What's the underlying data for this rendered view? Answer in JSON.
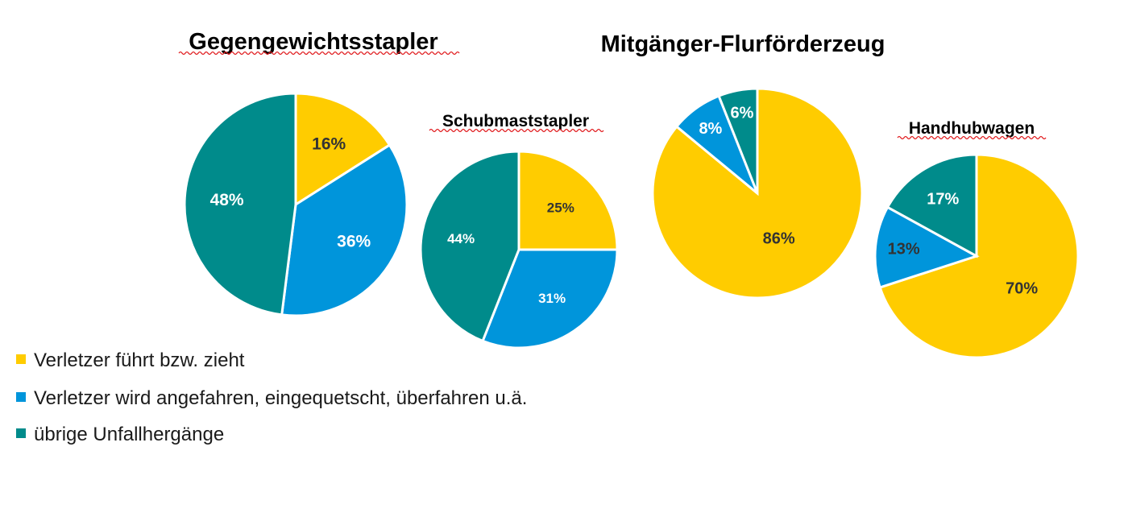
{
  "colors": {
    "fuehrt": "#FFCC00",
    "angefahren": "#0095DB",
    "uebrige": "#008B8B",
    "label_dark": "#333333",
    "label_light": "#ffffff"
  },
  "chart_data": [
    {
      "type": "pie",
      "title": "Gegengewichtsstapler",
      "slices": [
        {
          "label": "Verletzer führt bzw. zieht",
          "value": 16,
          "text": "16%"
        },
        {
          "label": "Verletzer wird angefahren, eingequetscht, überfahren u.ä.",
          "value": 36,
          "text": "36%"
        },
        {
          "label": "übrige Unfallhergänge",
          "value": 48,
          "text": "48%"
        }
      ]
    },
    {
      "type": "pie",
      "title": "Schubmaststapler",
      "slices": [
        {
          "label": "Verletzer führt bzw. zieht",
          "value": 25,
          "text": "25%"
        },
        {
          "label": "Verletzer wird angefahren, eingequetscht, überfahren u.ä.",
          "value": 31,
          "text": "31%"
        },
        {
          "label": "übrige Unfallhergänge",
          "value": 44,
          "text": "44%"
        }
      ]
    },
    {
      "type": "pie",
      "title": "Mitgänger-Flurförderzeug",
      "slices": [
        {
          "label": "Verletzer führt bzw. zieht",
          "value": 86,
          "text": "86%"
        },
        {
          "label": "Verletzer wird angefahren, eingequetscht, überfahren u.ä.",
          "value": 8,
          "text": "8%"
        },
        {
          "label": "übrige Unfallhergänge",
          "value": 6,
          "text": "6%"
        }
      ]
    },
    {
      "type": "pie",
      "title": "Handhubwagen",
      "slices": [
        {
          "label": "Verletzer führt bzw. zieht",
          "value": 70,
          "text": "70%"
        },
        {
          "label": "Verletzer wird angefahren, eingequetscht, überfahren u.ä.",
          "value": 13,
          "text": "13%"
        },
        {
          "label": "übrige Unfallhergänge",
          "value": 17,
          "text": "17%"
        }
      ]
    }
  ],
  "legend": [
    {
      "label": "Verletzer führt bzw. zieht",
      "color": "#FFCC00"
    },
    {
      "label": "Verletzer wird angefahren, eingequetscht, überfahren u.ä.",
      "color": "#0095DB"
    },
    {
      "label": "übrige Unfallhergänge",
      "color": "#008B8B"
    }
  ]
}
